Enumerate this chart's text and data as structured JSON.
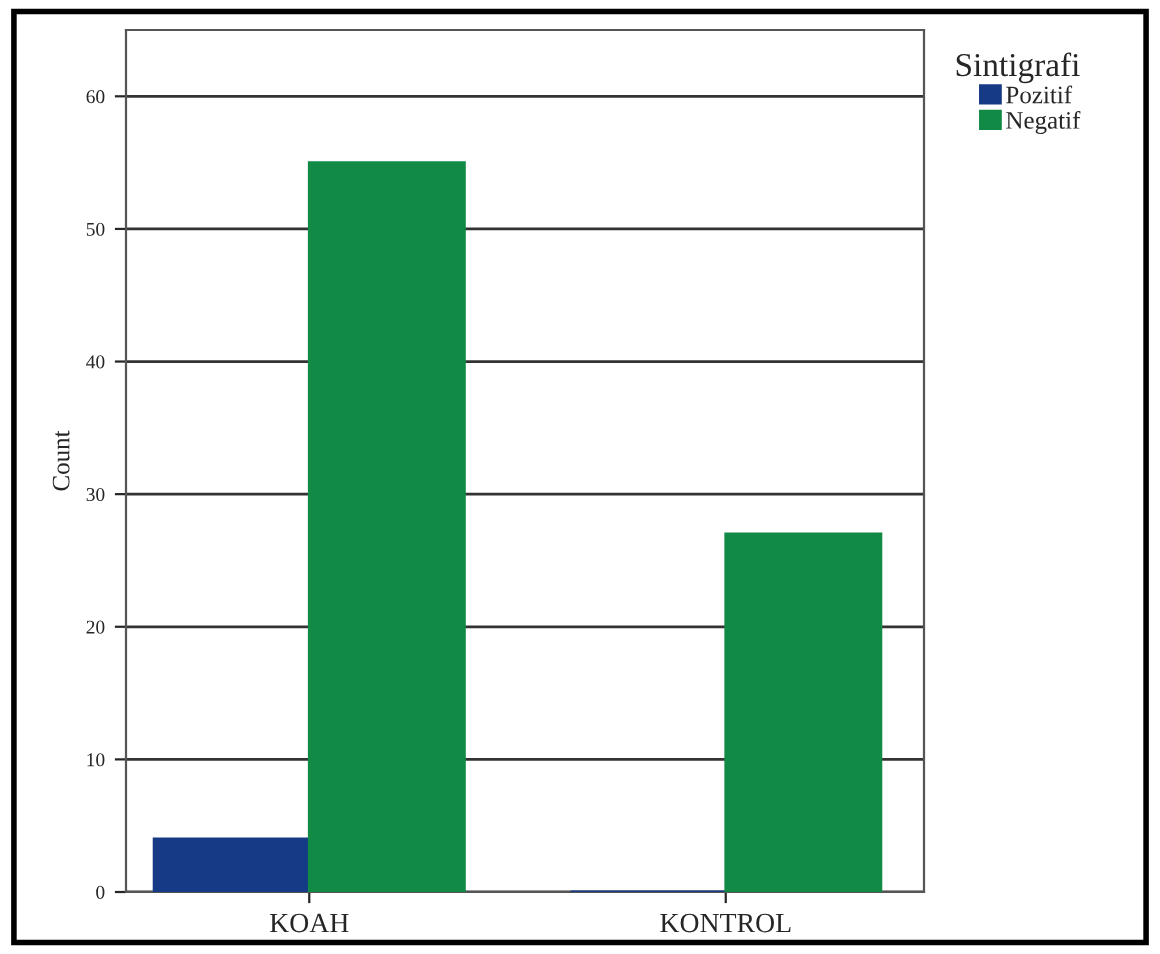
{
  "chart_data": {
    "type": "bar",
    "ylabel": "Count",
    "legend_title": "Sintigrafi",
    "categories": [
      "KOAH",
      "KONTROL"
    ],
    "series": [
      {
        "name": "Pozitif",
        "color": "#163a86",
        "values": [
          4,
          0
        ]
      },
      {
        "name": "Negatif",
        "color": "#118a46",
        "values": [
          55,
          27
        ]
      }
    ],
    "ylim": [
      0,
      65
    ],
    "yticks": [
      0,
      10,
      20,
      30,
      40,
      50,
      60
    ],
    "grid": "y",
    "legend": "top right"
  }
}
